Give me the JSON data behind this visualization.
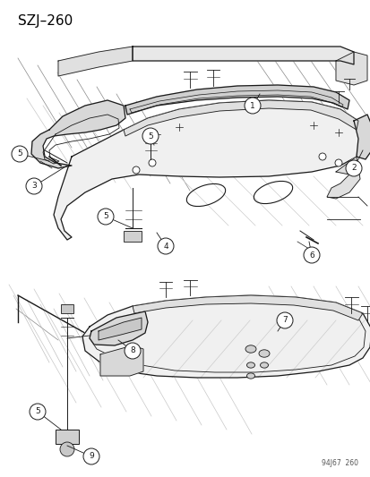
{
  "title": "SZJ–260",
  "watermark": "94J67  260",
  "bg_color": "#ffffff",
  "title_fontsize": 11,
  "fig_width": 4.14,
  "fig_height": 5.33,
  "dpi": 100
}
